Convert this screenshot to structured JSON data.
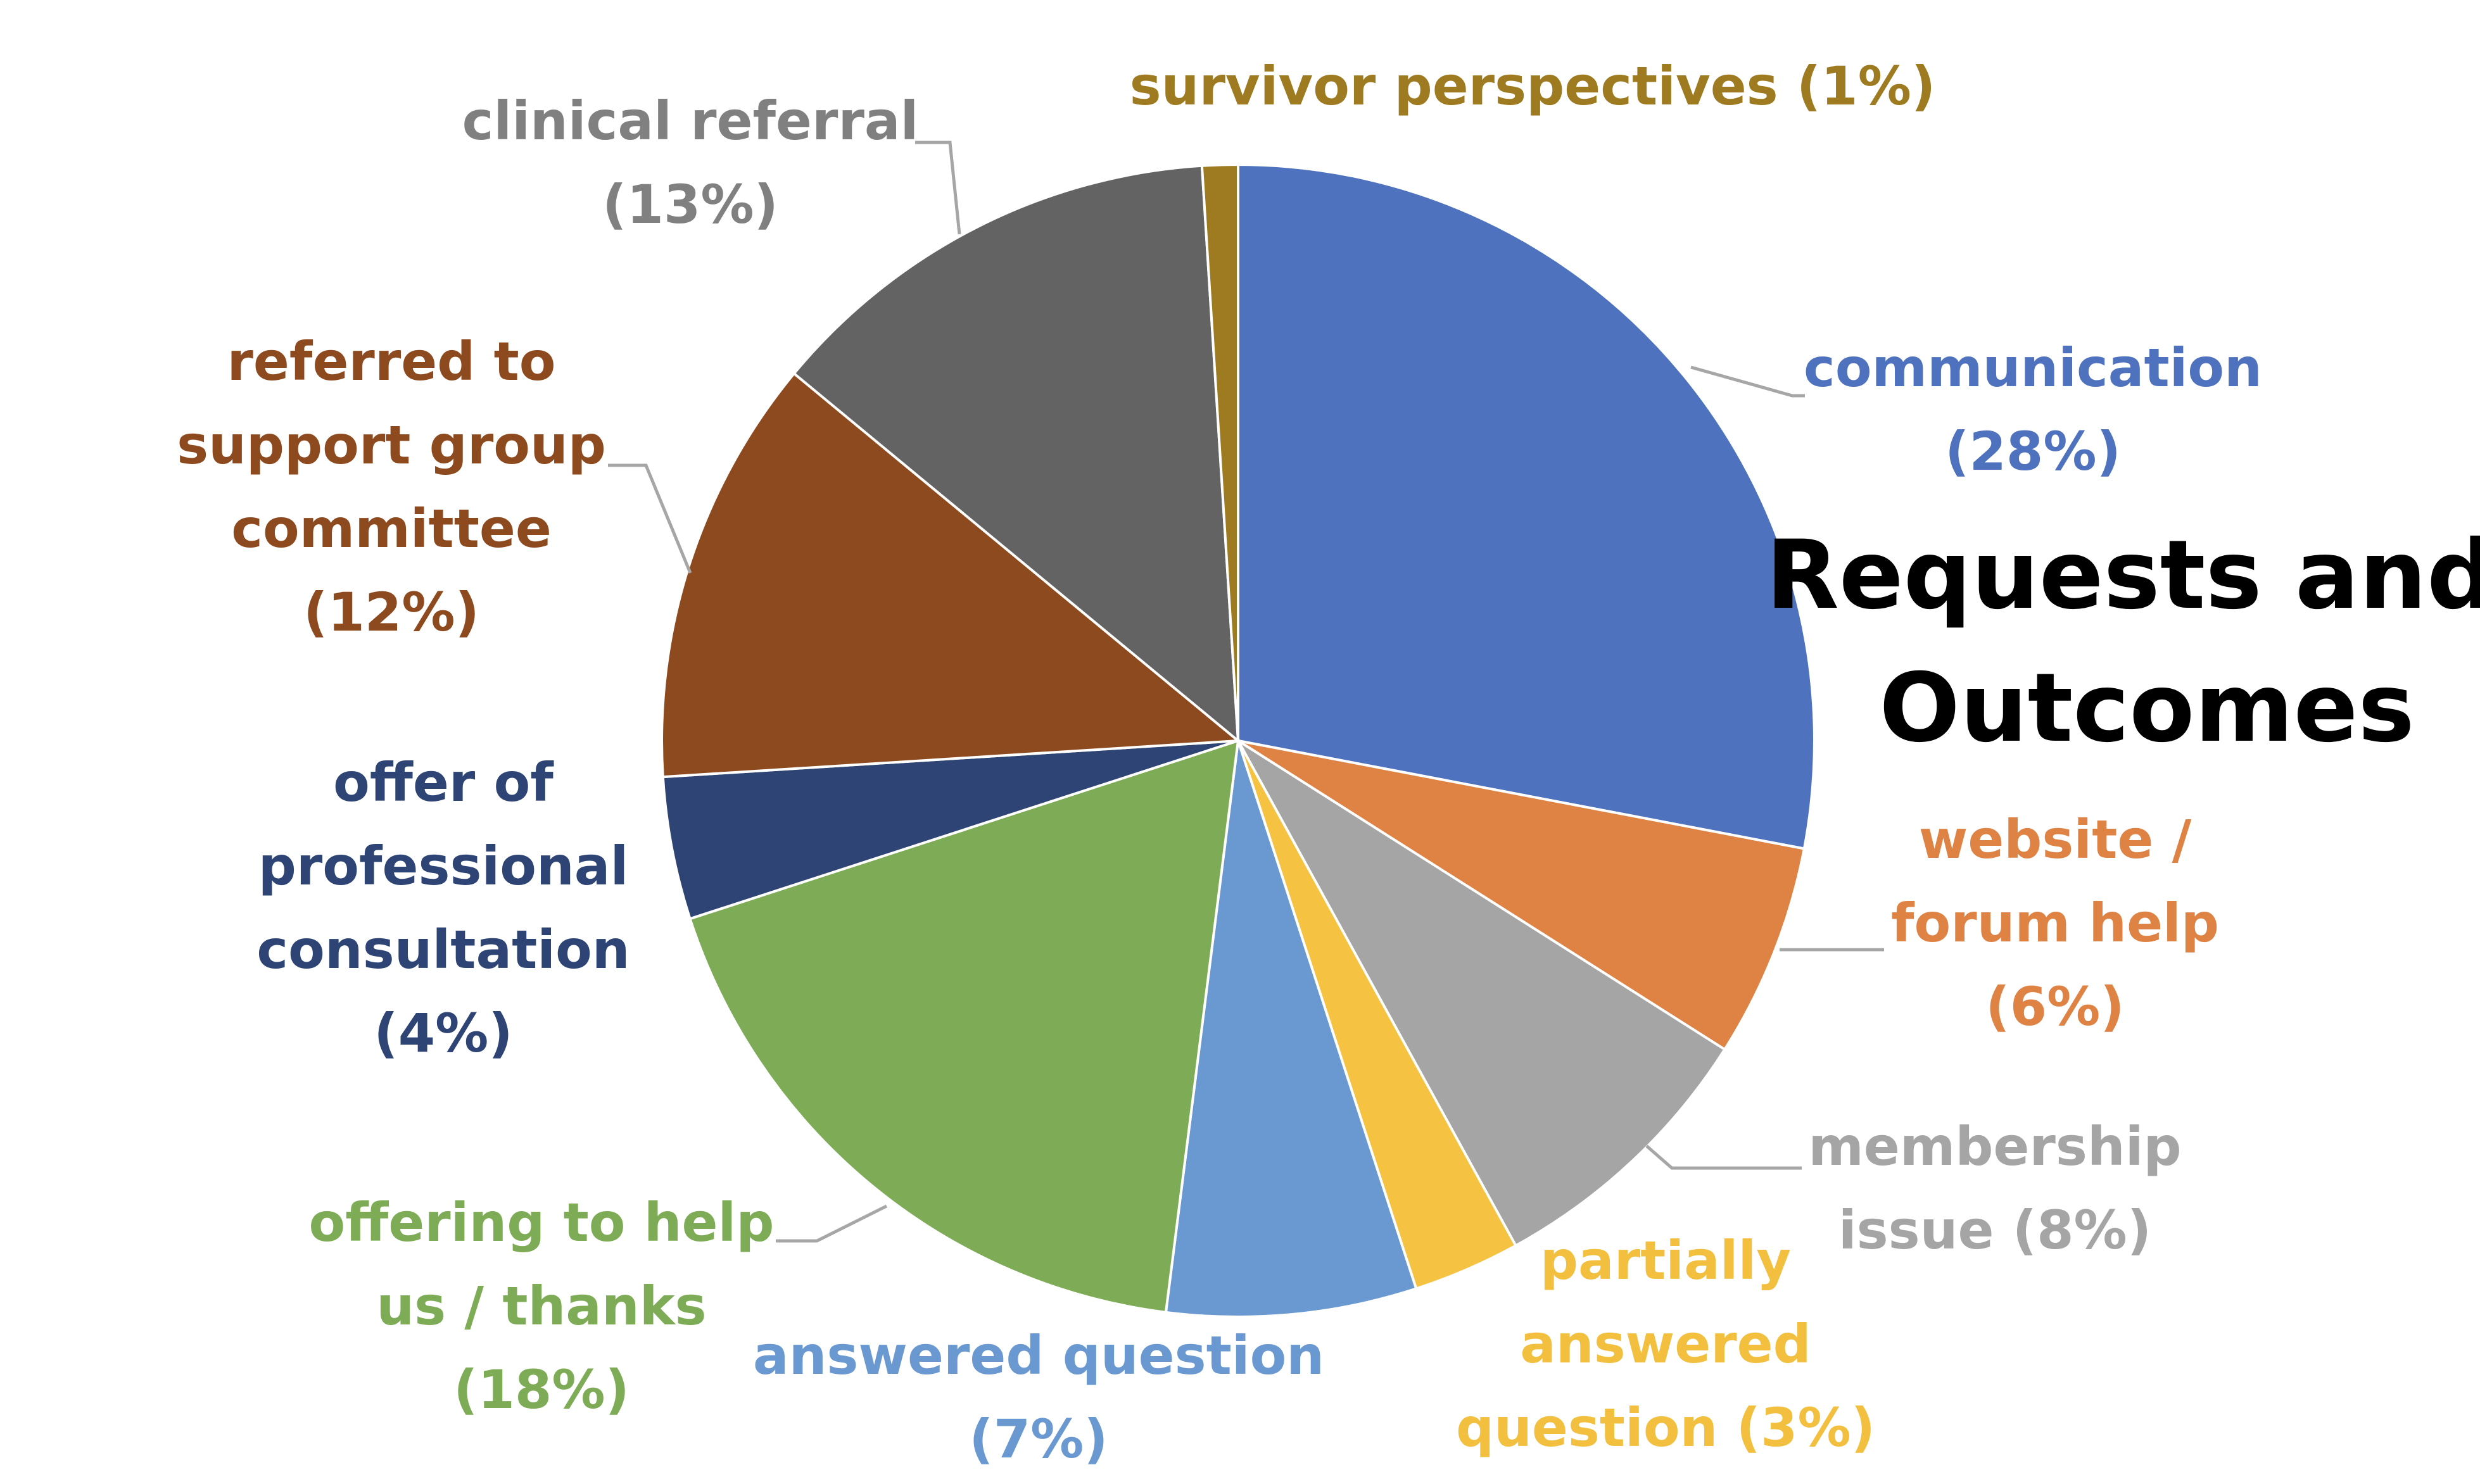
{
  "chart_data": {
    "type": "pie",
    "title": [
      "Requests and",
      "Outcomes"
    ],
    "start_angle_deg": 0,
    "direction": "clockwise",
    "slices": [
      {
        "name": "communication",
        "value": 28,
        "color": "#4E72BE",
        "label_lines": [
          "communication",
          "(28%)"
        ]
      },
      {
        "name": "website / forum help",
        "value": 6,
        "color": "#DF8344",
        "label_lines": [
          "website /",
          "forum help",
          "(6%)"
        ]
      },
      {
        "name": "membership issue",
        "value": 8,
        "color": "#A5A5A5",
        "label_lines": [
          "membership",
          "issue (8%)"
        ]
      },
      {
        "name": "partially answered question",
        "value": 3,
        "color": "#F5C242",
        "label_lines": [
          "partially",
          "answered",
          "question (3%)"
        ]
      },
      {
        "name": "answered question",
        "value": 7,
        "color": "#6A98D0",
        "label_lines": [
          "answered question",
          "(7%)"
        ]
      },
      {
        "name": "offering to help us / thanks",
        "value": 18,
        "color": "#7EAB55",
        "label_lines": [
          "offering to help",
          "us / thanks",
          "(18%)"
        ]
      },
      {
        "name": "offer of professional consultation",
        "value": 4,
        "color": "#2D4474",
        "label_lines": [
          "offer of",
          "professional",
          "consultation",
          "(4%)"
        ]
      },
      {
        "name": "referred to support group committee",
        "value": 12,
        "color": "#8E4A1F",
        "label_lines": [
          "referred to",
          "support group",
          "committee",
          "(12%)"
        ]
      },
      {
        "name": "clinical referral",
        "value": 13,
        "color": "#636363",
        "label_lines": [
          "clinical referral",
          "(13%)"
        ]
      },
      {
        "name": "survivor perspectives",
        "value": 1,
        "color": "#9E7B20",
        "label_lines": [
          "survivor perspectives (1%)"
        ]
      }
    ],
    "label_colors": {
      "communication": "#4E72BE",
      "website / forum help": "#DF8344",
      "membership issue": "#A5A5A5",
      "partially answered question": "#F2C03E",
      "answered question": "#6A98D0",
      "offering to help us / thanks": "#7EAB55",
      "offer of professional consultation": "#2D4474",
      "referred to support group committee": "#8E4A1F",
      "clinical referral": "#808080",
      "survivor perspectives": "#9E7B20"
    }
  }
}
